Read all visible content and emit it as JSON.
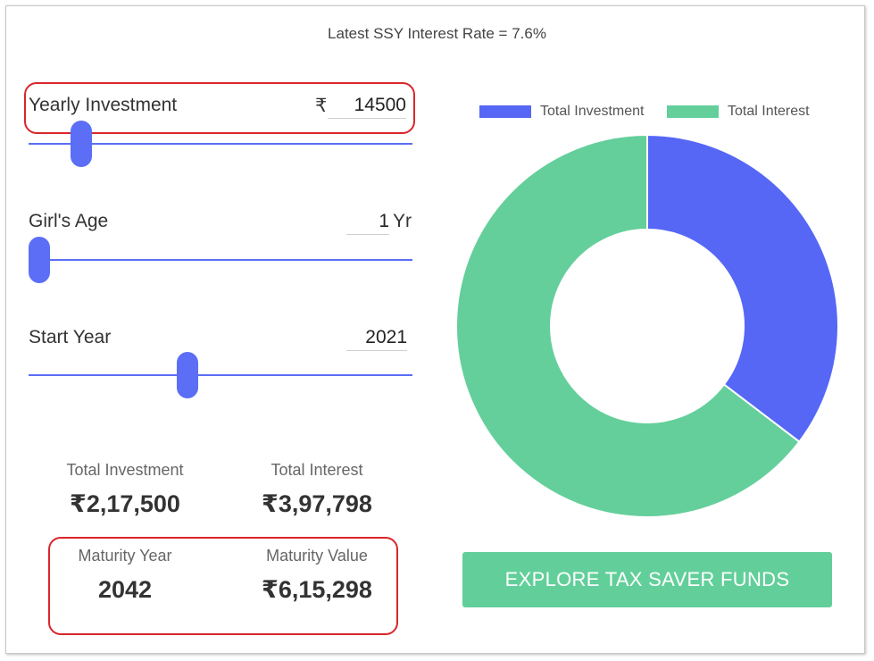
{
  "header": {
    "rate_text": "Latest SSY Interest Rate = 7.6%"
  },
  "fields": {
    "yearly_investment": {
      "label": "Yearly Investment",
      "currency": "₹",
      "value": "14500",
      "slider_fraction": 0.115
    },
    "girls_age": {
      "label": "Girl's Age",
      "value": "1",
      "unit": "Yr",
      "slider_fraction": 0.0
    },
    "start_year": {
      "label": "Start Year",
      "value": "2021",
      "slider_fraction": 0.41
    }
  },
  "summary": {
    "total_investment": {
      "label": "Total Investment",
      "value": "₹2,17,500"
    },
    "total_interest": {
      "label": "Total Interest",
      "value": "₹3,97,798"
    },
    "maturity_year": {
      "label": "Maturity Year",
      "value": "2042"
    },
    "maturity_value": {
      "label": "Maturity Value",
      "value": "₹6,15,298"
    }
  },
  "chart_data": {
    "type": "pie",
    "style": "donut",
    "legend_position": "top",
    "series": [
      {
        "name": "Total Investment",
        "value": 217500,
        "color": "#5667f5"
      },
      {
        "name": "Total Interest",
        "value": 397798,
        "color": "#64cf9b"
      }
    ]
  },
  "cta": {
    "label": "EXPLORE TAX SAVER FUNDS"
  },
  "colors": {
    "accent": "#5b6ef5",
    "highlight": "#d9262b",
    "cta": "#62cf9a"
  }
}
